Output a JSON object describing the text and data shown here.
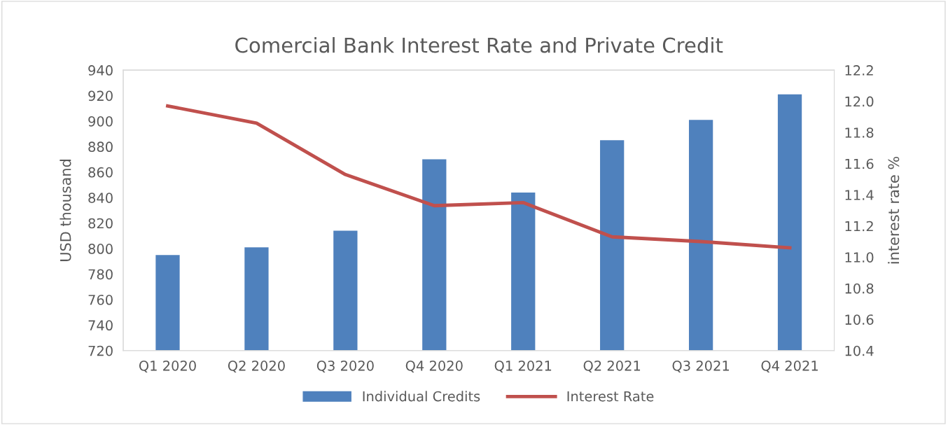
{
  "chart_data": {
    "type": "bar",
    "title": "Comercial Bank Interest Rate and Private Credit",
    "ylabel": "USD thousand",
    "y2label": "interest rate %",
    "categories": [
      "Q1 2020",
      "Q2 2020",
      "Q3 2020",
      "Q4 2020",
      "Q1 2021",
      "Q2 2021",
      "Q3 2021",
      "Q4 2021"
    ],
    "series": [
      {
        "name": "Individual Credits",
        "color": "#4f81bd",
        "values": [
          795,
          801,
          814,
          870,
          844,
          885,
          901,
          921
        ]
      },
      {
        "name": "Interest Rate",
        "type": "line",
        "axis": "y2",
        "color": "#c0504d",
        "values": [
          11.97,
          11.86,
          11.53,
          11.33,
          11.35,
          11.13,
          11.1,
          11.06
        ]
      }
    ],
    "ylim": [
      720,
      940
    ],
    "yticks": [
      720,
      740,
      760,
      780,
      800,
      820,
      840,
      860,
      880,
      900,
      920,
      940
    ],
    "y2lim": [
      10.4,
      12.2
    ],
    "y2ticks": [
      {
        "value": 10.4,
        "label": "10.4"
      },
      {
        "value": 10.6,
        "label": "10.6"
      },
      {
        "value": 10.8,
        "label": "10.8"
      },
      {
        "value": 11.0,
        "label": "11.0"
      },
      {
        "value": 11.2,
        "label": "11.2"
      },
      {
        "value": 11.4,
        "label": "11.4"
      },
      {
        "value": 11.6,
        "label": "11.6"
      },
      {
        "value": 11.8,
        "label": "11.8"
      },
      {
        "value": 12.0,
        "label": "12.0"
      },
      {
        "value": 12.2,
        "label": "12.2"
      }
    ],
    "legend": "bottom",
    "grid": false,
    "marker": "none",
    "line_style": "solid"
  }
}
